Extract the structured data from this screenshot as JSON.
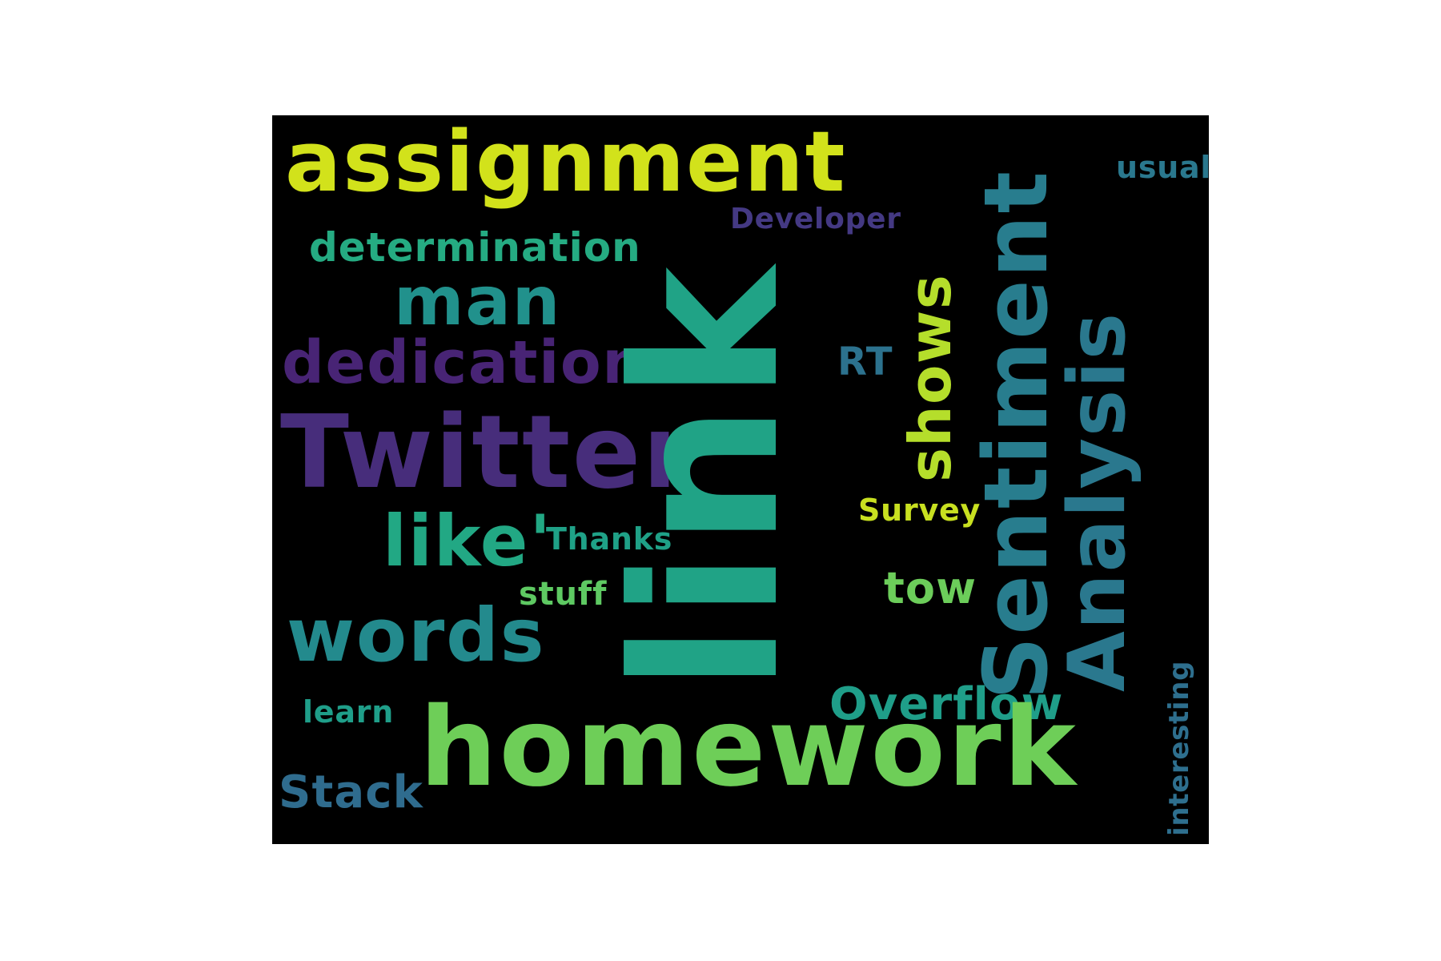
{
  "wordcloud": {
    "words": [
      {
        "key": "assignment",
        "text": "assignment",
        "color": "#d2e21b"
      },
      {
        "key": "usual",
        "text": "usual",
        "color": "#2a788e"
      },
      {
        "key": "developer",
        "text": "Developer",
        "color": "#443983"
      },
      {
        "key": "determination",
        "text": "determination",
        "color": "#25ab82"
      },
      {
        "key": "man",
        "text": "man",
        "color": "#21918c"
      },
      {
        "key": "dedication",
        "text": "dedication",
        "color": "#482475"
      },
      {
        "key": "rt",
        "text": "RT",
        "color": "#2c728e"
      },
      {
        "key": "twitter",
        "text": "Twitter",
        "color": "#472d7b"
      },
      {
        "key": "like",
        "text": "like'",
        "color": "#22a884"
      },
      {
        "key": "thanks",
        "text": "Thanks",
        "color": "#1fa187"
      },
      {
        "key": "survey",
        "text": "Survey",
        "color": "#c8e020"
      },
      {
        "key": "stuff",
        "text": "stuff",
        "color": "#5ec962"
      },
      {
        "key": "tow",
        "text": "tow",
        "color": "#6ccd5a"
      },
      {
        "key": "words",
        "text": "words",
        "color": "#238a8d"
      },
      {
        "key": "learn",
        "text": "learn",
        "color": "#1f9e89"
      },
      {
        "key": "overflow",
        "text": "Overflow",
        "color": "#1f9e89"
      },
      {
        "key": "homework",
        "text": "homework",
        "color": "#6ece58"
      },
      {
        "key": "stack",
        "text": "Stack",
        "color": "#2f6c8e"
      },
      {
        "key": "link",
        "text": "link",
        "color": "#20a386"
      },
      {
        "key": "shows",
        "text": "shows",
        "color": "#b5de2b"
      },
      {
        "key": "sentiment",
        "text": "Sentiment",
        "color": "#287d8e"
      },
      {
        "key": "analysis",
        "text": "Analysis",
        "color": "#2a788e"
      },
      {
        "key": "interesting",
        "text": "interesting",
        "color": "#2e6f8e"
      }
    ]
  }
}
